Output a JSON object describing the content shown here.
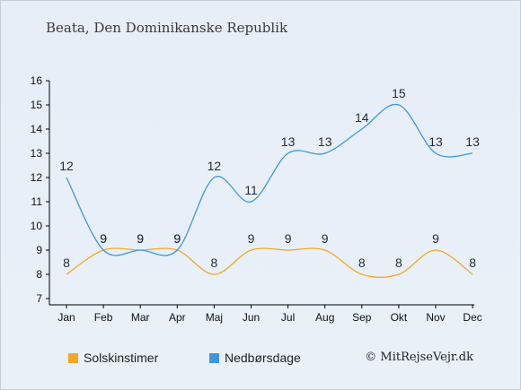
{
  "chart_data": {
    "type": "line",
    "title": "Beata, Den Dominikanske Republik",
    "categories": [
      "Jan",
      "Feb",
      "Mar",
      "Apr",
      "Maj",
      "Jun",
      "Jul",
      "Aug",
      "Sep",
      "Okt",
      "Nov",
      "Dec"
    ],
    "ylim": [
      7,
      16
    ],
    "yticks": [
      7,
      8,
      9,
      10,
      11,
      12,
      13,
      14,
      15,
      16
    ],
    "series": [
      {
        "name": "Solskinstimer",
        "color": "#f5a623",
        "values": [
          8,
          9,
          9,
          9,
          8,
          9,
          9,
          9,
          8,
          8,
          9,
          8
        ]
      },
      {
        "name": "Nedbørsdage",
        "color": "#3b97e3",
        "values": [
          12,
          9,
          9,
          9,
          12,
          11,
          13,
          13,
          14,
          15,
          13,
          13
        ]
      }
    ],
    "legend_position": "bottom",
    "grid": false
  },
  "credit": "© MitRejseVejr.dk"
}
